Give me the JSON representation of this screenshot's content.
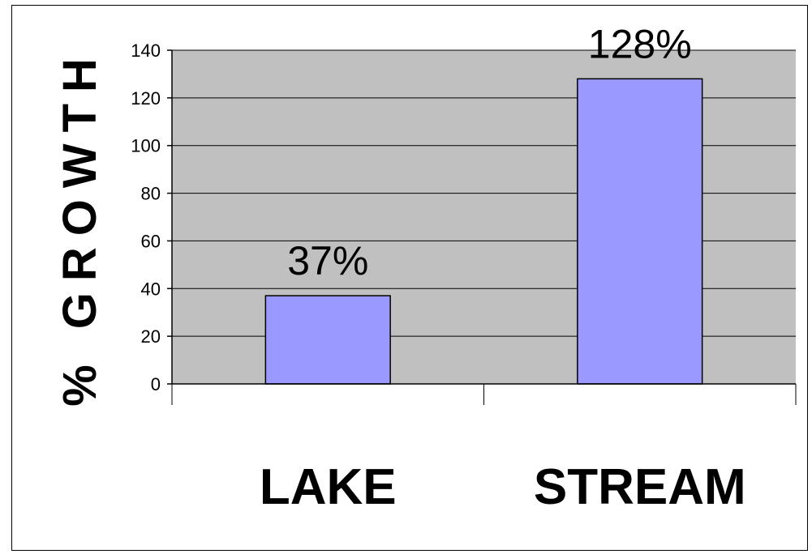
{
  "chart_data": {
    "type": "bar",
    "categories": [
      "LAKE",
      "STREAM"
    ],
    "values": [
      37,
      128
    ],
    "data_labels": [
      "37%",
      "128%"
    ],
    "title": "",
    "xlabel": "",
    "ylabel": "% GROWTH",
    "ylim": [
      0,
      140
    ],
    "yticks": [
      0,
      20,
      40,
      60,
      80,
      100,
      120,
      140
    ],
    "grid": true,
    "legend": "none",
    "colors": {
      "bar": "#9999ff",
      "plot_background": "#c0c0c0",
      "gridline": "#000000"
    }
  }
}
